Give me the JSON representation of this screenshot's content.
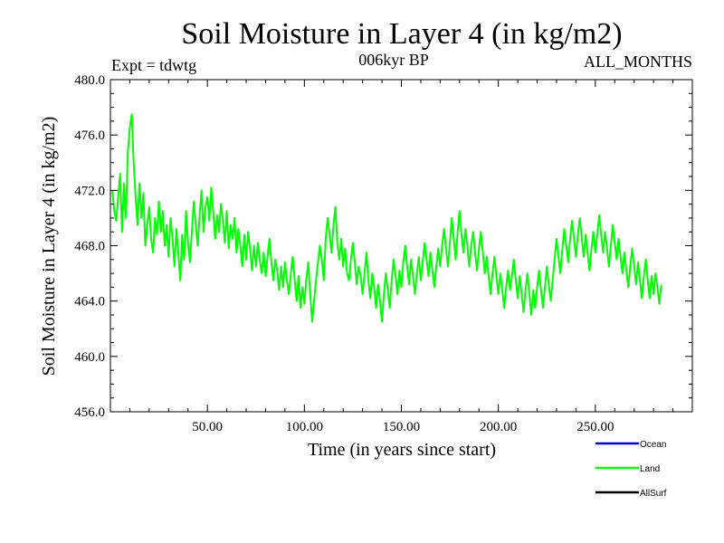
{
  "chart_data": {
    "type": "line",
    "title": "Soil Moisture in Layer 4 (in kg/m2)",
    "subtitle_left": "Expt = tdwtg",
    "subtitle_center": "006kyr BP",
    "subtitle_right": "ALL_MONTHS",
    "xlabel": "Time (in years since start)",
    "ylabel": "Soil Moisture in Layer 4 (in kg/m2)",
    "xlim": [
      0,
      300
    ],
    "ylim": [
      456,
      480
    ],
    "x_ticks": [
      50,
      100,
      150,
      200,
      250
    ],
    "x_tick_labels": [
      "50.00",
      "100.00",
      "150.00",
      "200.00",
      "250.00"
    ],
    "y_ticks": [
      456,
      460,
      464,
      468,
      472,
      476,
      480
    ],
    "y_tick_labels": [
      "456.0",
      "460.0",
      "464.0",
      "468.0",
      "472.0",
      "476.0",
      "480.0"
    ],
    "grid": false,
    "legend_position": "bottom-right",
    "legend": [
      {
        "name": "Ocean",
        "color": "#0000cc"
      },
      {
        "name": "Land",
        "color": "#00ff00"
      },
      {
        "name": "AllSurf",
        "color": "#000000"
      }
    ],
    "series": [
      {
        "name": "Land",
        "color": "#00ff00",
        "x_start": 1,
        "x_step": 1,
        "values": [
          472.0,
          470.5,
          469.8,
          471.5,
          473.2,
          469.0,
          472.5,
          470.0,
          474.8,
          476.5,
          477.5,
          474.0,
          471.5,
          469.5,
          472.5,
          470.0,
          471.8,
          468.0,
          469.5,
          470.8,
          468.5,
          467.5,
          470.0,
          468.8,
          471.2,
          469.0,
          470.5,
          468.0,
          469.5,
          467.2,
          470.0,
          468.6,
          466.5,
          469.2,
          467.5,
          465.5,
          468.8,
          467.0,
          470.5,
          468.2,
          466.8,
          469.0,
          471.2,
          469.5,
          468.0,
          470.2,
          472.0,
          469.0,
          470.8,
          471.5,
          469.8,
          472.2,
          470.5,
          468.5,
          470.2,
          469.0,
          471.0,
          469.8,
          468.2,
          470.5,
          467.8,
          469.5,
          468.5,
          470.0,
          467.5,
          469.2,
          468.0,
          466.5,
          468.8,
          467.0,
          469.0,
          467.8,
          466.2,
          468.0,
          466.5,
          468.2,
          467.0,
          466.0,
          467.5,
          465.8,
          467.2,
          468.5,
          466.8,
          465.5,
          467.0,
          466.2,
          464.8,
          466.5,
          465.0,
          466.8,
          465.5,
          464.5,
          466.0,
          467.2,
          465.5,
          464.0,
          465.8,
          463.5,
          465.0,
          463.8,
          465.5,
          466.8,
          464.5,
          462.5,
          464.0,
          465.5,
          466.8,
          468.0,
          467.0,
          465.5,
          468.5,
          470.0,
          468.8,
          467.5,
          469.5,
          470.8,
          468.2,
          467.0,
          468.5,
          466.5,
          467.8,
          466.0,
          465.5,
          467.0,
          468.2,
          466.8,
          465.2,
          466.5,
          465.8,
          464.5,
          466.0,
          467.5,
          465.5,
          464.2,
          466.0,
          465.0,
          463.5,
          465.2,
          464.0,
          462.5,
          464.5,
          466.0,
          464.8,
          463.5,
          465.5,
          467.0,
          465.8,
          464.5,
          466.2,
          465.0,
          466.8,
          468.0,
          466.5,
          465.2,
          467.0,
          465.8,
          464.5,
          466.0,
          467.2,
          465.5,
          466.8,
          468.2,
          467.0,
          465.8,
          467.5,
          466.2,
          465.0,
          466.5,
          467.8,
          466.5,
          468.0,
          469.2,
          467.8,
          466.5,
          468.2,
          470.0,
          468.5,
          467.0,
          469.0,
          470.5,
          468.8,
          467.5,
          469.2,
          468.0,
          466.5,
          468.0,
          469.0,
          467.5,
          466.2,
          467.8,
          469.0,
          467.5,
          466.0,
          467.2,
          465.8,
          464.5,
          466.0,
          467.2,
          465.8,
          464.5,
          466.0,
          464.8,
          463.5,
          465.0,
          466.2,
          464.8,
          465.8,
          467.0,
          465.5,
          464.2,
          465.8,
          464.5,
          463.2,
          464.8,
          466.0,
          464.5,
          463.0,
          464.8,
          463.5,
          465.0,
          466.2,
          464.8,
          463.5,
          465.0,
          466.5,
          465.2,
          464.0,
          465.5,
          467.0,
          468.5,
          467.2,
          466.0,
          467.8,
          469.2,
          468.0,
          466.8,
          468.5,
          469.8,
          468.5,
          467.2,
          468.8,
          470.0,
          468.5,
          467.2,
          468.8,
          467.5,
          466.2,
          467.8,
          469.0,
          467.5,
          468.8,
          470.2,
          468.8,
          467.5,
          469.0,
          467.8,
          466.5,
          468.0,
          469.5,
          468.2,
          467.0,
          468.5,
          467.2,
          466.0,
          467.5,
          466.2,
          465.0,
          466.5,
          467.8,
          466.5,
          465.2,
          466.8,
          465.5,
          464.2,
          465.8,
          467.0,
          465.5,
          464.2,
          465.8,
          464.5,
          466.0,
          465.0,
          463.8,
          465.2
        ]
      }
    ]
  }
}
